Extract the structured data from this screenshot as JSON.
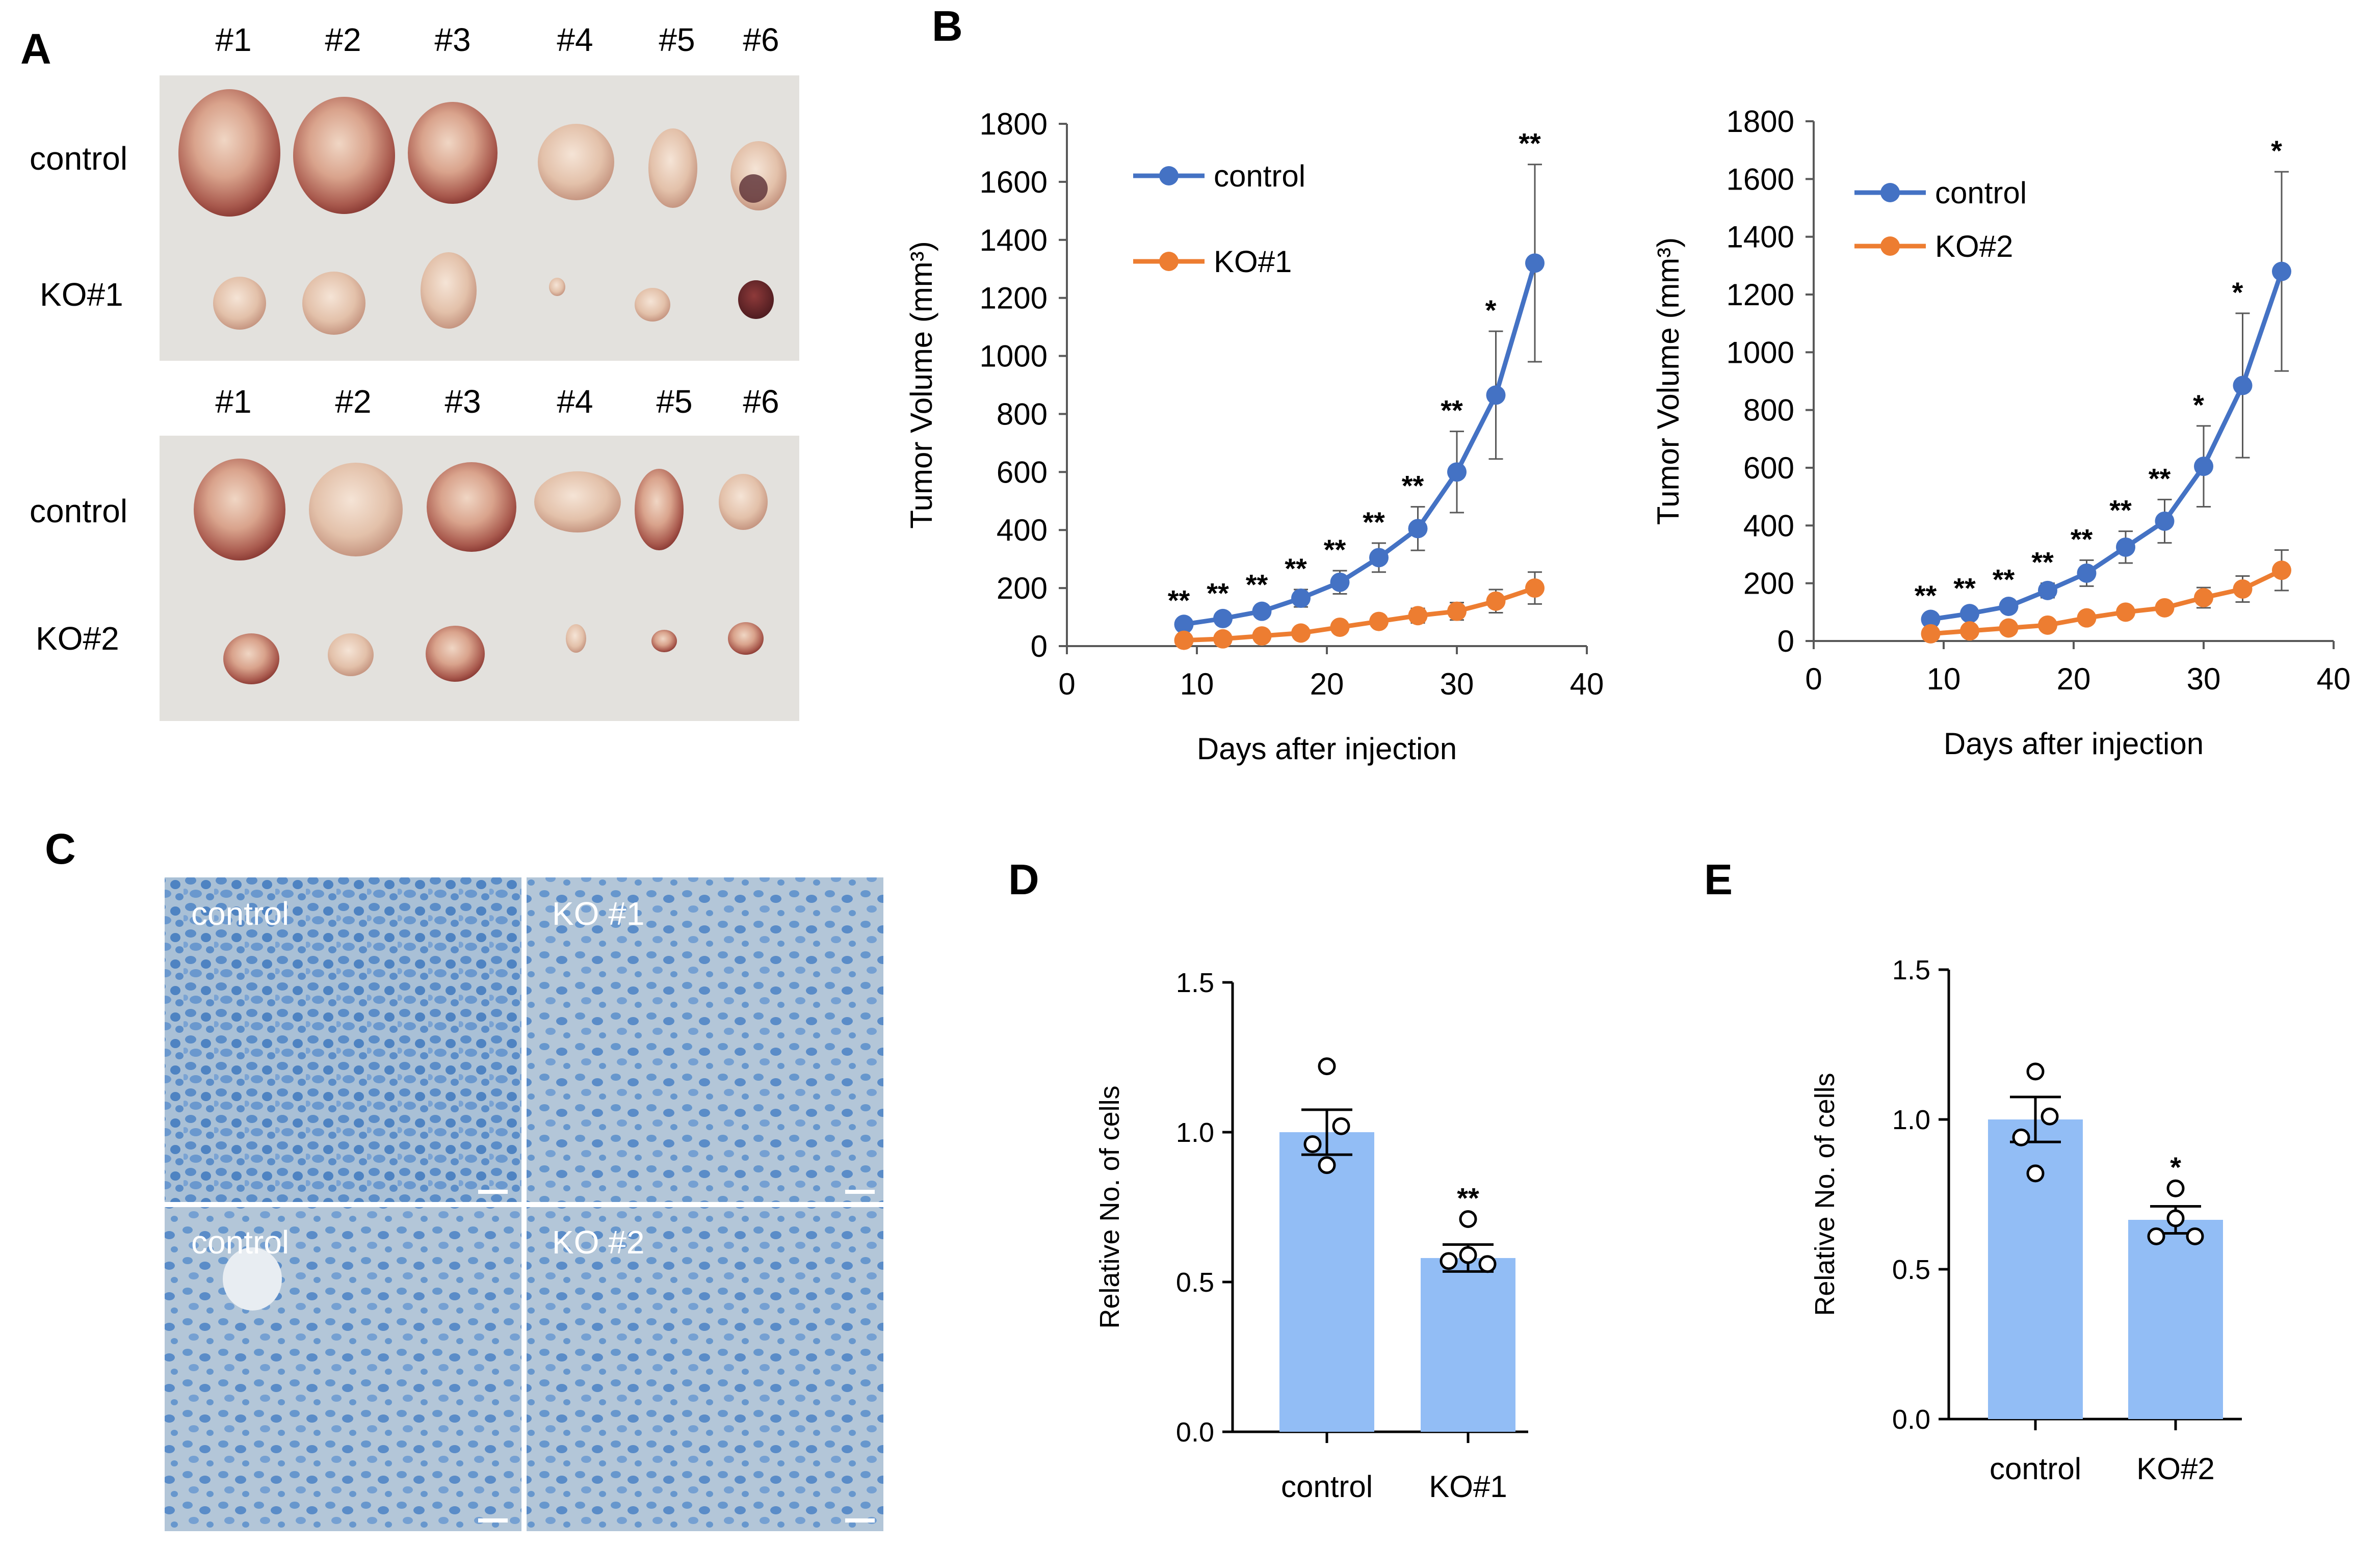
{
  "panels": {
    "A": {
      "letter": "A",
      "top": {
        "samples": [
          "#1",
          "#2",
          "#3",
          "#4",
          "#5",
          "#6"
        ],
        "rows": [
          "control",
          "KO#1"
        ]
      },
      "bottom": {
        "samples": [
          "#1",
          "#2",
          "#3",
          "#4",
          "#5",
          "#6"
        ],
        "rows": [
          "control",
          "KO#2"
        ]
      }
    },
    "B": {
      "letter": "B"
    },
    "C": {
      "letter": "C",
      "tiles": [
        "control",
        "KO #1",
        "control",
        "KO #2"
      ]
    },
    "D": {
      "letter": "D"
    },
    "E": {
      "letter": "E"
    }
  },
  "colors": {
    "control_line": "#4472C4",
    "ko_line": "#ED7D31",
    "bar_fill": "#92BDF5",
    "tissue_bg": "#A8BED4",
    "nucleus": "#5A8CC8",
    "photo_bg": "#E2E0DC"
  },
  "chart_data": [
    {
      "id": "B1",
      "type": "line",
      "xlabel": "Days after injection",
      "ylabel": "Tumor Volume (mm³)",
      "xlim": [
        0,
        40
      ],
      "ylim": [
        0,
        1800
      ],
      "xticks": [
        0,
        10,
        20,
        30,
        40
      ],
      "yticks": [
        0,
        200,
        400,
        600,
        800,
        1000,
        1200,
        1400,
        1600,
        1800
      ],
      "x": [
        9,
        12,
        15,
        18,
        21,
        24,
        27,
        30,
        33,
        36
      ],
      "series": [
        {
          "name": "control",
          "values": [
            75,
            95,
            120,
            165,
            220,
            305,
            405,
            600,
            865,
            1320
          ],
          "errors": [
            10,
            15,
            20,
            30,
            40,
            50,
            75,
            140,
            220,
            340
          ]
        },
        {
          "name": "KO#1",
          "values": [
            20,
            25,
            35,
            45,
            65,
            85,
            105,
            120,
            155,
            200
          ],
          "errors": [
            5,
            5,
            8,
            10,
            12,
            15,
            25,
            30,
            40,
            55
          ]
        }
      ],
      "significance": [
        "**",
        "**",
        "**",
        "**",
        "**",
        "**",
        "**",
        "**",
        "*",
        "**"
      ]
    },
    {
      "id": "B2",
      "type": "line",
      "xlabel": "Days after injection",
      "ylabel": "Tumor Volume (mm³)",
      "xlim": [
        0,
        40
      ],
      "ylim": [
        0,
        1800
      ],
      "xticks": [
        0,
        10,
        20,
        30,
        40
      ],
      "yticks": [
        0,
        200,
        400,
        600,
        800,
        1000,
        1200,
        1400,
        1600,
        1800
      ],
      "x": [
        9,
        12,
        15,
        18,
        21,
        24,
        27,
        30,
        33,
        36
      ],
      "series": [
        {
          "name": "control",
          "values": [
            75,
            95,
            120,
            175,
            235,
            325,
            415,
            605,
            885,
            1280
          ],
          "errors": [
            10,
            15,
            20,
            25,
            45,
            55,
            75,
            140,
            250,
            345
          ]
        },
        {
          "name": "KO#2",
          "values": [
            25,
            35,
            45,
            55,
            80,
            100,
            115,
            150,
            180,
            245
          ],
          "errors": [
            5,
            8,
            10,
            12,
            15,
            15,
            20,
            35,
            45,
            70
          ]
        }
      ],
      "significance": [
        "**",
        "**",
        "**",
        "**",
        "**",
        "**",
        "**",
        "*",
        "*",
        "*"
      ]
    },
    {
      "id": "D",
      "type": "bar",
      "ylabel": "Relative No. of cells",
      "categories": [
        "control",
        "KO#1"
      ],
      "values": [
        1.0,
        0.58
      ],
      "errors": [
        0.075,
        0.045
      ],
      "points": [
        [
          1.22,
          1.02,
          0.96,
          0.89
        ],
        [
          0.71,
          0.59,
          0.57,
          0.56
        ]
      ],
      "ylim": [
        0,
        1.5
      ],
      "yticks": [
        0.0,
        0.5,
        1.0,
        1.5
      ],
      "significance": [
        "",
        "**"
      ]
    },
    {
      "id": "E",
      "type": "bar",
      "ylabel": "Relative No. of cells",
      "categories": [
        "control",
        "KO#2"
      ],
      "values": [
        1.0,
        0.665
      ],
      "errors": [
        0.075,
        0.045
      ],
      "points": [
        [
          1.16,
          1.01,
          0.94,
          0.82
        ],
        [
          0.77,
          0.67,
          0.61,
          0.61
        ]
      ],
      "ylim": [
        0,
        1.5
      ],
      "yticks": [
        0.0,
        0.5,
        1.0,
        1.5
      ],
      "significance": [
        "",
        "*"
      ]
    }
  ]
}
